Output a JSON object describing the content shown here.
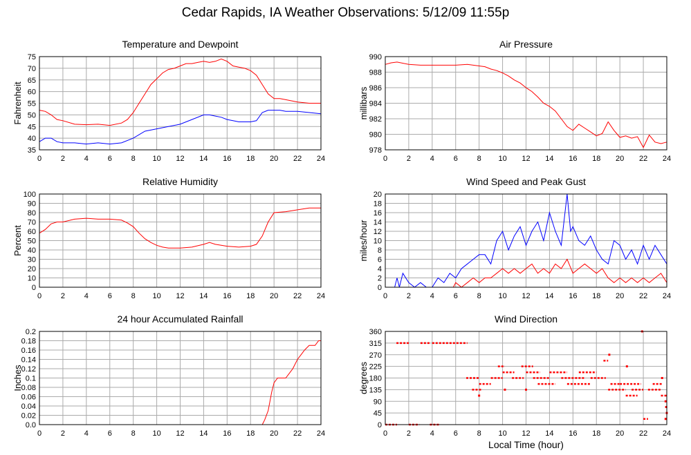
{
  "page": {
    "title": "Cedar Rapids, IA Weather Observations: 5/12/09 11:55p"
  },
  "colors": {
    "red": "#ff0000",
    "blue": "#0000ff",
    "grid": "#aaaaaa",
    "frame": "#000000"
  },
  "chart_data": [
    {
      "id": "temp",
      "type": "line",
      "title": "Temperature and Dewpoint",
      "xlabel": "",
      "ylabel": "Fahrenheit",
      "xlim": [
        0,
        24
      ],
      "ylim": [
        35,
        75
      ],
      "xticks": [
        0,
        2,
        4,
        6,
        8,
        10,
        12,
        14,
        16,
        18,
        20,
        22,
        24
      ],
      "yticks": [
        35,
        40,
        45,
        50,
        55,
        60,
        65,
        70,
        75
      ],
      "grid": true,
      "series": [
        {
          "color": "#ff0000",
          "x": [
            0,
            0.5,
            1,
            1.5,
            2,
            3,
            4,
            5,
            6,
            7,
            7.5,
            8,
            8.5,
            9,
            9.5,
            10,
            10.5,
            11,
            11.5,
            12,
            12.5,
            13,
            13.5,
            14,
            14.5,
            15,
            15.5,
            16,
            16.5,
            17,
            17.5,
            18,
            18.5,
            19,
            19.5,
            20,
            20.5,
            21,
            22,
            23,
            24
          ],
          "y": [
            52,
            51.5,
            50,
            48,
            47.5,
            46,
            45.8,
            46,
            45.5,
            46.5,
            48,
            51,
            55,
            59,
            63,
            65.5,
            68,
            69.5,
            70,
            71,
            72,
            72,
            72.5,
            73,
            72.5,
            73,
            74,
            73,
            71,
            70.5,
            70,
            69,
            67,
            63,
            59,
            57,
            57,
            56.5,
            55.5,
            55,
            55
          ]
        },
        {
          "color": "#0000ff",
          "x": [
            0,
            0.5,
            1,
            1.5,
            2,
            3,
            4,
            5,
            6,
            7,
            8,
            9,
            10,
            11,
            12,
            13,
            14,
            14.5,
            15,
            15.5,
            16,
            16.5,
            17,
            17.5,
            18,
            18.5,
            19,
            19.5,
            20,
            20.5,
            21,
            22,
            23,
            24
          ],
          "y": [
            38.5,
            40,
            40,
            38.5,
            38,
            38,
            37.5,
            38,
            37.5,
            38,
            40,
            43,
            44,
            45,
            46,
            48,
            50,
            50,
            49.5,
            49,
            48,
            47.5,
            47,
            47,
            47,
            47.5,
            51,
            52,
            52,
            52,
            51.5,
            51.5,
            51,
            50.5
          ]
        }
      ]
    },
    {
      "id": "pressure",
      "type": "line",
      "title": "Air Pressure",
      "xlabel": "",
      "ylabel": "millibars",
      "xlim": [
        0,
        24
      ],
      "ylim": [
        978,
        990
      ],
      "xticks": [
        0,
        2,
        4,
        6,
        8,
        10,
        12,
        14,
        16,
        18,
        20,
        22,
        24
      ],
      "yticks": [
        978,
        980,
        982,
        984,
        986,
        988,
        990
      ],
      "grid": true,
      "series": [
        {
          "color": "#ff0000",
          "x": [
            0,
            0.5,
            1,
            2,
            3,
            4,
            5,
            6,
            7,
            8,
            8.5,
            9,
            9.5,
            10,
            10.5,
            11,
            11.5,
            12,
            12.5,
            13,
            13.5,
            14,
            14.5,
            15,
            15.5,
            16,
            16.5,
            17,
            17.5,
            18,
            18.5,
            19,
            19.5,
            20,
            20.5,
            21,
            21.5,
            22,
            22.5,
            23,
            23.5,
            24
          ],
          "y": [
            989,
            989.2,
            989.3,
            989,
            988.9,
            988.9,
            988.9,
            988.9,
            989,
            988.8,
            988.7,
            988.4,
            988.2,
            987.9,
            987.5,
            987,
            986.6,
            986,
            985.5,
            984.8,
            984,
            983.6,
            983,
            982,
            981,
            980.5,
            981.3,
            980.8,
            980.3,
            979.8,
            980.1,
            981.6,
            980.5,
            979.6,
            979.8,
            979.5,
            979.7,
            978.3,
            979.9,
            979,
            978.8,
            979
          ]
        }
      ]
    },
    {
      "id": "rh",
      "type": "line",
      "title": "Relative Humidity",
      "xlabel": "",
      "ylabel": "Percent",
      "xlim": [
        0,
        24
      ],
      "ylim": [
        0,
        100
      ],
      "xticks": [
        0,
        2,
        4,
        6,
        8,
        10,
        12,
        14,
        16,
        18,
        20,
        22,
        24
      ],
      "yticks": [
        0,
        10,
        20,
        30,
        40,
        50,
        60,
        70,
        80,
        90,
        100
      ],
      "grid": true,
      "series": [
        {
          "color": "#ff0000",
          "x": [
            0,
            0.5,
            1,
            1.5,
            2,
            3,
            4,
            5,
            6,
            7,
            7.5,
            8,
            8.5,
            9,
            9.5,
            10,
            10.5,
            11,
            12,
            13,
            14,
            14.5,
            15,
            16,
            17,
            18,
            18.5,
            19,
            19.5,
            20,
            21,
            22,
            23,
            24
          ],
          "y": [
            58,
            62,
            68,
            70,
            70,
            73,
            74,
            73,
            73,
            72,
            69,
            65,
            58,
            52,
            48,
            45,
            43,
            42,
            42,
            43,
            46,
            48,
            46,
            44,
            43,
            44,
            46,
            55,
            70,
            80,
            81,
            83,
            85,
            85
          ]
        }
      ]
    },
    {
      "id": "wind",
      "type": "line",
      "title": "Wind Speed and Peak Gust",
      "xlabel": "",
      "ylabel": "miles/hour",
      "xlim": [
        0,
        24
      ],
      "ylim": [
        0,
        20
      ],
      "xticks": [
        0,
        2,
        4,
        6,
        8,
        10,
        12,
        14,
        16,
        18,
        20,
        22,
        24
      ],
      "yticks": [
        0,
        2,
        4,
        6,
        8,
        10,
        12,
        14,
        16,
        18,
        20
      ],
      "grid": true,
      "series": [
        {
          "color": "#0000ff",
          "x": [
            0,
            0.8,
            1,
            1.2,
            1.5,
            2,
            2.5,
            3,
            3.5,
            4,
            4.5,
            5,
            5.5,
            6,
            6.5,
            7,
            7.5,
            8,
            8.5,
            9,
            9.5,
            10,
            10.5,
            11,
            11.5,
            12,
            12.5,
            13,
            13.5,
            14,
            14.5,
            15,
            15.5,
            15.8,
            16,
            16.5,
            17,
            17.5,
            18,
            18.5,
            19,
            19.5,
            20,
            20.5,
            21,
            21.5,
            22,
            22.5,
            23,
            23.5,
            24
          ],
          "y": [
            0,
            0,
            2,
            0,
            3,
            1,
            0,
            1,
            0,
            0,
            2,
            1,
            3,
            2,
            4,
            5,
            6,
            7,
            7,
            5,
            10,
            12,
            8,
            11,
            13,
            9,
            12,
            14,
            10,
            16,
            12,
            9,
            20,
            12,
            13,
            10,
            9,
            11,
            8,
            6,
            5,
            10,
            9,
            6,
            8,
            5,
            9,
            6,
            9,
            7,
            5
          ]
        },
        {
          "color": "#ff0000",
          "x": [
            0,
            5.8,
            6,
            6.5,
            7,
            7.5,
            8,
            8.5,
            9,
            9.5,
            10,
            10.5,
            11,
            11.5,
            12,
            12.5,
            13,
            13.5,
            14,
            14.5,
            15,
            15.5,
            16,
            16.5,
            17,
            17.5,
            18,
            18.5,
            19,
            19.5,
            20,
            20.5,
            21,
            21.5,
            22,
            22.5,
            23,
            23.5,
            24
          ],
          "y": [
            0,
            0,
            1,
            0,
            1,
            2,
            1,
            2,
            2,
            3,
            4,
            3,
            4,
            3,
            4,
            5,
            3,
            4,
            3,
            5,
            4,
            6,
            3,
            4,
            5,
            4,
            3,
            4,
            2,
            1,
            2,
            1,
            2,
            1,
            2,
            1,
            2,
            3,
            1
          ]
        }
      ]
    },
    {
      "id": "rain",
      "type": "line",
      "title": "24 hour Accumulated Rainfall",
      "xlabel": "",
      "ylabel": "Inches",
      "xlim": [
        0,
        24
      ],
      "ylim": [
        0,
        0.2
      ],
      "xticks": [
        0,
        2,
        4,
        6,
        8,
        10,
        12,
        14,
        16,
        18,
        20,
        22,
        24
      ],
      "yticks": [
        0.0,
        0.02,
        0.04,
        0.06,
        0.08,
        0.1,
        0.12,
        0.14,
        0.16,
        0.18,
        0.2
      ],
      "yticklabels": [
        "0.0",
        "0.02",
        "0.04",
        "0.06",
        "0.08",
        "0.1",
        "0.12",
        "0.14",
        "0.16",
        "0.18",
        "0.2"
      ],
      "grid": true,
      "series": [
        {
          "color": "#ff0000",
          "x": [
            0,
            19,
            19.2,
            19.5,
            19.8,
            20,
            20.3,
            21,
            21.3,
            21.6,
            22,
            22.3,
            22.6,
            23,
            23.5,
            23.8,
            24
          ],
          "y": [
            0,
            0,
            0.01,
            0.03,
            0.07,
            0.09,
            0.1,
            0.1,
            0.11,
            0.12,
            0.14,
            0.15,
            0.16,
            0.17,
            0.17,
            0.18,
            0.18
          ]
        }
      ]
    },
    {
      "id": "wdir",
      "type": "scatter",
      "title": "Wind Direction",
      "xlabel": "Local Time (hour)",
      "ylabel": "degrees",
      "xlim": [
        0,
        24
      ],
      "ylim": [
        0,
        360
      ],
      "xticks": [
        0,
        2,
        4,
        6,
        8,
        10,
        12,
        14,
        16,
        18,
        20,
        22,
        24
      ],
      "yticks": [
        0,
        45,
        90,
        135,
        180,
        225,
        270,
        315,
        360
      ],
      "grid": true,
      "series": [
        {
          "color": "#ff0000",
          "segments": [
            {
              "x0": 0,
              "x1": 1.0,
              "y": 0
            },
            {
              "x0": 0.95,
              "x1": 2.0,
              "y": 315
            },
            {
              "x0": 2.0,
              "x1": 2.9,
              "y": 0
            },
            {
              "x0": 3.0,
              "x1": 3.8,
              "y": 315
            },
            {
              "x0": 3.8,
              "x1": 4.6,
              "y": 0
            },
            {
              "x0": 4.0,
              "x1": 7.0,
              "y": 315
            },
            {
              "x0": 6.9,
              "x1": 8.0,
              "y": 180
            },
            {
              "x0": 7.4,
              "x1": 8.2,
              "y": 135
            },
            {
              "x0": 8.0,
              "x1": 9.0,
              "y": 157
            },
            {
              "x0": 9.0,
              "x1": 10.0,
              "y": 180
            },
            {
              "x0": 9.6,
              "x1": 10.2,
              "y": 225
            },
            {
              "x0": 10.0,
              "x1": 11.0,
              "y": 202
            },
            {
              "x0": 10.8,
              "x1": 11.8,
              "y": 180
            },
            {
              "x0": 11.6,
              "x1": 12.6,
              "y": 225
            },
            {
              "x0": 12.0,
              "x1": 13.2,
              "y": 202
            },
            {
              "x0": 12.6,
              "x1": 14.0,
              "y": 180
            },
            {
              "x0": 13.0,
              "x1": 14.5,
              "y": 157
            },
            {
              "x0": 14.0,
              "x1": 15.5,
              "y": 202
            },
            {
              "x0": 15.0,
              "x1": 17.0,
              "y": 180
            },
            {
              "x0": 15.5,
              "x1": 17.5,
              "y": 157
            },
            {
              "x0": 16.5,
              "x1": 18.0,
              "y": 202
            },
            {
              "x0": 17.5,
              "x1": 18.8,
              "y": 180
            },
            {
              "x0": 18.6,
              "x1": 19.0,
              "y": 247
            },
            {
              "x0": 19.0,
              "x1": 20.5,
              "y": 135
            },
            {
              "x0": 19.2,
              "x1": 20.0,
              "y": 157
            },
            {
              "x0": 20.0,
              "x1": 21.8,
              "y": 157
            },
            {
              "x0": 20.5,
              "x1": 21.5,
              "y": 112
            },
            {
              "x0": 21.0,
              "x1": 22.0,
              "y": 135
            },
            {
              "x0": 22.0,
              "x1": 22.4,
              "y": 22
            },
            {
              "x0": 22.4,
              "x1": 23.5,
              "y": 135
            },
            {
              "x0": 22.8,
              "x1": 23.6,
              "y": 157
            },
            {
              "x0": 23.5,
              "x1": 24,
              "y": 112
            }
          ],
          "points": [
            {
              "x": 8.0,
              "y": 112
            },
            {
              "x": 10.2,
              "y": 135
            },
            {
              "x": 12.0,
              "y": 135
            },
            {
              "x": 19.1,
              "y": 270
            },
            {
              "x": 20.6,
              "y": 225
            },
            {
              "x": 21.9,
              "y": 360
            },
            {
              "x": 23.6,
              "y": 180
            },
            {
              "x": 23.9,
              "y": 90
            },
            {
              "x": 23.95,
              "y": 68
            },
            {
              "x": 24,
              "y": 45
            },
            {
              "x": 23.9,
              "y": 22
            }
          ]
        }
      ]
    }
  ]
}
